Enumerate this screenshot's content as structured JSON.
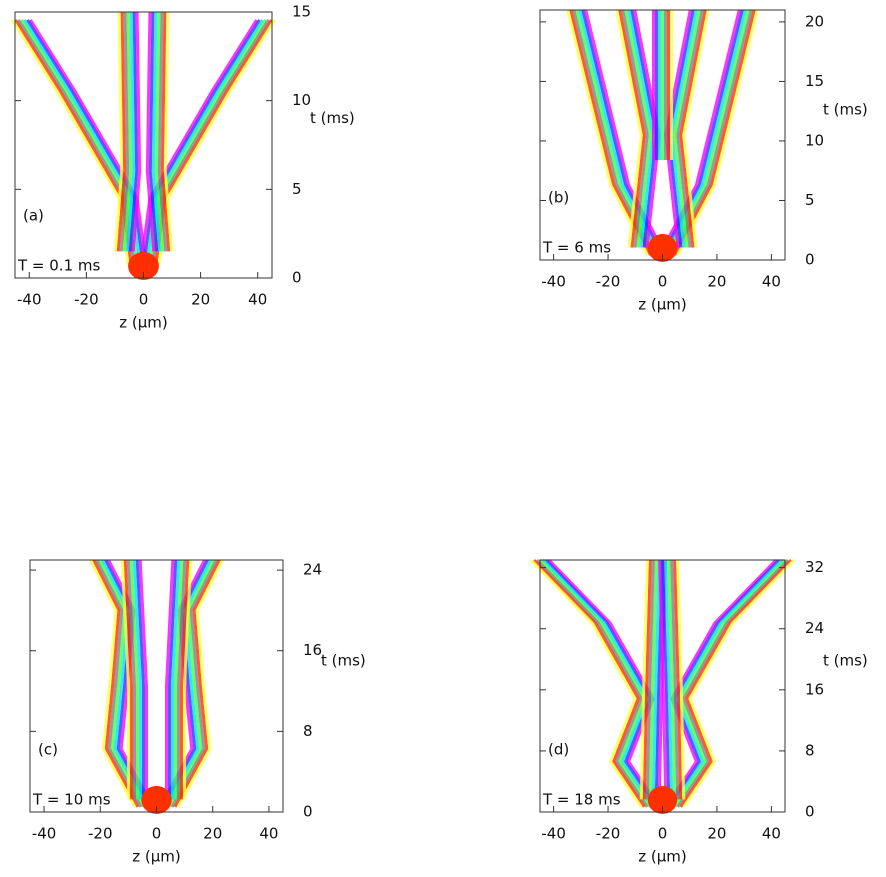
{
  "chart_data": [
    {
      "type": "contour",
      "panel_label": "(a)",
      "annotation": "T = 0.1 ms",
      "x_label": "z (µm)",
      "y_label": "t (ms)",
      "xlim": [
        -45,
        45
      ],
      "xticks": [
        -40,
        -20,
        0,
        20,
        40
      ],
      "ylim": [
        0,
        15
      ],
      "yticks": [
        0,
        5,
        10,
        15
      ]
    },
    {
      "type": "contour",
      "panel_label": "(b)",
      "annotation": "T = 6 ms",
      "x_label": "z (µm)",
      "y_label": "t (ms)",
      "xlim": [
        -45,
        45
      ],
      "xticks": [
        -40,
        -20,
        0,
        20,
        40
      ],
      "ylim": [
        0,
        21
      ],
      "yticks": [
        0,
        5,
        10,
        15,
        20
      ]
    },
    {
      "type": "contour",
      "panel_label": "(c)",
      "annotation": "T = 10 ms",
      "x_label": "z (µm)",
      "y_label": "t (ms)",
      "xlim": [
        -45,
        45
      ],
      "xticks": [
        -40,
        -20,
        0,
        20,
        40
      ],
      "ylim": [
        0,
        25
      ],
      "yticks": [
        0,
        8,
        16,
        24
      ]
    },
    {
      "type": "contour",
      "panel_label": "(d)",
      "annotation": "T = 18 ms",
      "x_label": "z (µm)",
      "y_label": "t (ms)",
      "xlim": [
        -45,
        45
      ],
      "xticks": [
        -40,
        -20,
        0,
        20,
        40
      ],
      "ylim": [
        0,
        33
      ],
      "yticks": [
        0,
        8,
        16,
        24,
        32
      ]
    }
  ]
}
